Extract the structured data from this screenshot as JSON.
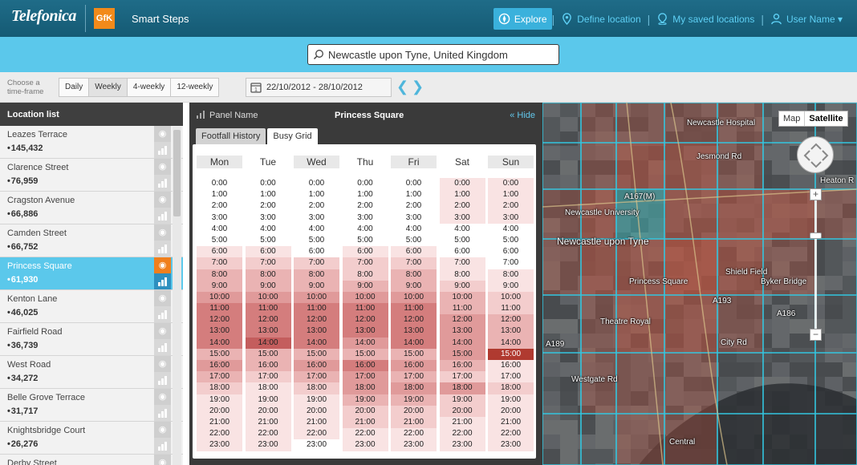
{
  "header": {
    "brand": "Telefonica",
    "gfk_logo": "GfK",
    "app_name": "Smart Steps",
    "nav": [
      {
        "label": "Explore",
        "icon": "compass-icon",
        "active": true
      },
      {
        "label": "Define location",
        "icon": "location-pin-icon",
        "active": false
      },
      {
        "label": "My saved locations",
        "icon": "saved-location-icon",
        "active": false
      },
      {
        "label": "User Name ▾",
        "icon": "user-icon",
        "active": false
      }
    ]
  },
  "search": {
    "value": "Newcastle upon Tyne, United Kingdom"
  },
  "timeframe": {
    "label": "Choose a time-frame",
    "options": [
      "Daily",
      "Weekly",
      "4-weekly",
      "12-weekly"
    ],
    "selected": "Weekly",
    "date_range": "22/10/2012 - 28/10/2012"
  },
  "sidebar": {
    "title": "Location list",
    "items": [
      {
        "name": "Leazes Terrace",
        "count": "145,432"
      },
      {
        "name": "Clarence Street",
        "count": "76,959"
      },
      {
        "name": "Cragston Avenue",
        "count": "66,886"
      },
      {
        "name": "Camden Street",
        "count": "66,752"
      },
      {
        "name": "Princess Square",
        "count": "61,930",
        "selected": true
      },
      {
        "name": "Kenton Lane",
        "count": "46,025"
      },
      {
        "name": "Fairfield Road",
        "count": "36,739"
      },
      {
        "name": "West Road",
        "count": "34,272"
      },
      {
        "name": "Belle Grove Terrace",
        "count": "31,717"
      },
      {
        "name": "Knightsbridge Court",
        "count": "26,276"
      },
      {
        "name": "Derby Street",
        "count": ""
      }
    ]
  },
  "panel": {
    "label": "Panel Name",
    "title": "Princess Square",
    "hide": "« Hide",
    "tabs": [
      "Footfall History",
      "Busy Grid"
    ],
    "active_tab": "Busy Grid"
  },
  "busy_grid": {
    "days": [
      "Mon",
      "Tue",
      "Wed",
      "Thu",
      "Fri",
      "Sat",
      "Sun"
    ],
    "hours": [
      "0:00",
      "1:00",
      "2:00",
      "3:00",
      "4:00",
      "5:00",
      "6:00",
      "7:00",
      "8:00",
      "9:00",
      "10:00",
      "11:00",
      "12:00",
      "13:00",
      "14:00",
      "15:00",
      "16:00",
      "17:00",
      "18:00",
      "19:00",
      "20:00",
      "21:00",
      "22:00",
      "23:00"
    ],
    "levels": [
      [
        0,
        0,
        0,
        0,
        0,
        0,
        1,
        2,
        3,
        3,
        4,
        5,
        5,
        5,
        5,
        3,
        4,
        3,
        2,
        1,
        1,
        1,
        1,
        1
      ],
      [
        0,
        0,
        0,
        0,
        0,
        0,
        1,
        2,
        3,
        3,
        4,
        5,
        5,
        5,
        6,
        3,
        3,
        2,
        1,
        1,
        1,
        1,
        1,
        1
      ],
      [
        0,
        0,
        0,
        0,
        0,
        0,
        0,
        2,
        3,
        3,
        4,
        5,
        5,
        5,
        5,
        3,
        4,
        3,
        2,
        1,
        1,
        1,
        1,
        0
      ],
      [
        0,
        0,
        0,
        0,
        0,
        0,
        1,
        2,
        2,
        3,
        4,
        5,
        5,
        5,
        4,
        3,
        5,
        4,
        4,
        3,
        2,
        2,
        1,
        1
      ],
      [
        0,
        0,
        0,
        0,
        0,
        0,
        1,
        2,
        3,
        3,
        4,
        5,
        5,
        5,
        5,
        3,
        4,
        3,
        4,
        3,
        2,
        2,
        1,
        1
      ],
      [
        1,
        1,
        1,
        1,
        0,
        0,
        0,
        1,
        1,
        2,
        3,
        3,
        4,
        4,
        4,
        4,
        3,
        2,
        4,
        2,
        2,
        1,
        1,
        1
      ],
      [
        1,
        1,
        1,
        1,
        0,
        0,
        0,
        0,
        1,
        1,
        2,
        2,
        3,
        3,
        3,
        7,
        1,
        1,
        2,
        1,
        1,
        1,
        1,
        1
      ]
    ]
  },
  "map": {
    "type_options": [
      "Map",
      "Satellite"
    ],
    "active_type": "Satellite",
    "labels": [
      {
        "text": "Newcastle Hospital"
      },
      {
        "text": "Newcastle University"
      },
      {
        "text": "Newcastle upon Tyne"
      },
      {
        "text": "Princess Square"
      },
      {
        "text": "Theatre Royal"
      },
      {
        "text": "Shield Field"
      },
      {
        "text": "Byker Bridge"
      },
      {
        "text": "Heaton R"
      },
      {
        "text": "Westgate Rd"
      },
      {
        "text": "Central"
      },
      {
        "text": "City Rd"
      },
      {
        "text": "Jesmond Rd"
      },
      {
        "text": "A167(M)"
      },
      {
        "text": "A193"
      },
      {
        "text": "A186"
      },
      {
        "text": "A189"
      }
    ]
  },
  "colors": {
    "accent": "#5bc8eb",
    "header": "#1a6480",
    "selected_eye": "#f07f1c",
    "heat_levels": [
      "#ffffff",
      "#f9e3e3",
      "#f3cdcd",
      "#eab3b3",
      "#e09a9a",
      "#d47d7d",
      "#c45d5d",
      "#b03a30"
    ]
  }
}
